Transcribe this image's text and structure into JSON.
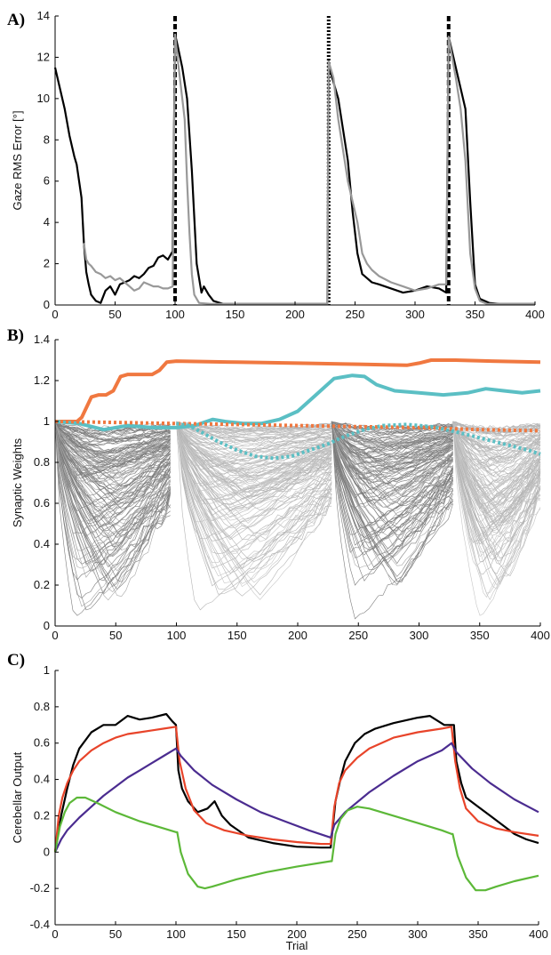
{
  "chart_data": [
    {
      "type": "line",
      "panel_label": "A)",
      "ylabel": "Gaze RMS Error [°]",
      "xlabel": "",
      "xlim": [
        0,
        400
      ],
      "ylim": [
        0,
        14
      ],
      "xticks": [
        0,
        50,
        100,
        150,
        200,
        250,
        300,
        350,
        400
      ],
      "yticks": [
        0,
        2,
        4,
        6,
        8,
        10,
        12,
        14
      ],
      "vlines": [
        {
          "x": 100,
          "style": "dashed"
        },
        {
          "x": 228,
          "style": "dotted"
        },
        {
          "x": 328,
          "style": "dashed"
        }
      ],
      "series": [
        {
          "color": "#000000",
          "x": [
            0,
            4,
            8,
            12,
            16,
            18,
            20,
            22,
            24,
            26,
            28,
            30,
            34,
            38,
            42,
            46,
            50,
            54,
            58,
            62,
            66,
            70,
            74,
            78,
            82,
            86,
            90,
            94,
            98,
            100,
            102,
            106,
            110,
            114,
            118,
            122,
            124,
            128,
            132,
            140,
            160,
            200,
            227,
            228,
            230,
            236,
            240,
            244,
            248,
            252,
            256,
            260,
            264,
            270,
            280,
            290,
            300,
            310,
            320,
            326,
            328,
            330,
            334,
            338,
            342,
            346,
            350,
            354,
            358,
            362,
            370,
            390,
            400
          ],
          "y": [
            11.5,
            10.5,
            9.5,
            8.2,
            7.2,
            6.8,
            6.0,
            5.2,
            3.0,
            1.6,
            1.0,
            0.5,
            0.2,
            0.1,
            0.7,
            0.9,
            0.5,
            1.0,
            1.1,
            1.2,
            1.4,
            1.3,
            1.5,
            1.8,
            1.9,
            2.3,
            2.4,
            2.2,
            2.6,
            13.1,
            12.6,
            11.5,
            10.0,
            6.5,
            2.0,
            0.6,
            0.9,
            0.5,
            0.2,
            0.05,
            0.05,
            0.05,
            0.05,
            11.8,
            11.2,
            10.0,
            8.5,
            7.0,
            4.5,
            2.5,
            1.5,
            1.3,
            1.1,
            1.0,
            0.8,
            0.6,
            0.7,
            0.9,
            0.8,
            0.6,
            13.0,
            12.5,
            11.5,
            10.5,
            9.5,
            5.0,
            1.0,
            0.3,
            0.2,
            0.1,
            0.05,
            0.05,
            0.05
          ]
        },
        {
          "color": "#999999",
          "x": [
            24,
            26,
            28,
            30,
            34,
            38,
            42,
            46,
            50,
            54,
            58,
            62,
            66,
            70,
            74,
            78,
            82,
            86,
            90,
            94,
            98,
            100,
            102,
            104,
            106,
            108,
            110,
            112,
            114,
            116,
            120,
            130,
            227,
            228,
            232,
            236,
            240,
            244,
            248,
            252,
            256,
            260,
            264,
            270,
            280,
            290,
            300,
            310,
            320,
            326,
            328,
            330,
            334,
            338,
            342,
            346,
            350,
            354,
            360,
            380,
            400
          ],
          "y": [
            3.0,
            2.2,
            2.0,
            1.9,
            1.6,
            1.5,
            1.3,
            1.4,
            1.2,
            1.3,
            1.1,
            0.9,
            0.7,
            0.8,
            1.1,
            1.0,
            0.9,
            0.9,
            0.8,
            0.8,
            0.9,
            13.1,
            12.0,
            11.0,
            10.0,
            9.0,
            6.0,
            3.5,
            1.5,
            0.5,
            0.1,
            0.05,
            0.05,
            11.8,
            11.0,
            9.0,
            7.5,
            6.0,
            5.0,
            4.0,
            2.5,
            2.0,
            1.7,
            1.4,
            1.1,
            0.9,
            0.7,
            0.8,
            1.0,
            1.0,
            13.0,
            12.3,
            11.0,
            9.5,
            7.0,
            2.5,
            0.8,
            0.2,
            0.05,
            0.05,
            0.05
          ]
        }
      ]
    },
    {
      "type": "line",
      "panel_label": "B)",
      "ylabel": "Synaptic Weights",
      "xlabel": "",
      "xlim": [
        0,
        400
      ],
      "ylim": [
        0,
        1.4
      ],
      "xticks": [
        0,
        50,
        100,
        150,
        200,
        250,
        300,
        350,
        400
      ],
      "yticks": [
        0,
        0.2,
        0.4,
        0.6,
        0.8,
        1,
        1.2,
        1.4
      ],
      "series": [
        {
          "color": "#f07840",
          "style": "solid",
          "x": [
            0,
            18,
            22,
            30,
            36,
            42,
            48,
            54,
            60,
            70,
            80,
            86,
            92,
            100,
            150,
            200,
            250,
            290,
            300,
            310,
            330,
            360,
            400
          ],
          "y": [
            1.0,
            1.0,
            1.02,
            1.12,
            1.13,
            1.13,
            1.15,
            1.22,
            1.23,
            1.23,
            1.23,
            1.25,
            1.29,
            1.295,
            1.29,
            1.285,
            1.28,
            1.275,
            1.285,
            1.3,
            1.3,
            1.295,
            1.29
          ]
        },
        {
          "color": "#5bbfc4",
          "style": "solid",
          "x": [
            0,
            20,
            40,
            60,
            80,
            100,
            115,
            130,
            140,
            155,
            170,
            185,
            200,
            215,
            230,
            245,
            255,
            265,
            280,
            300,
            320,
            340,
            355,
            370,
            385,
            400
          ],
          "y": [
            1.0,
            0.99,
            0.96,
            0.98,
            0.97,
            0.97,
            0.98,
            1.01,
            1.0,
            0.99,
            0.99,
            1.01,
            1.05,
            1.13,
            1.21,
            1.225,
            1.22,
            1.18,
            1.15,
            1.14,
            1.13,
            1.14,
            1.16,
            1.15,
            1.14,
            1.15
          ]
        },
        {
          "color": "#f07840",
          "style": "dotted",
          "x": [
            0,
            50,
            100,
            150,
            200,
            250,
            300,
            350,
            400
          ],
          "y": [
            1.0,
            0.995,
            0.99,
            0.985,
            0.98,
            0.975,
            0.97,
            0.96,
            0.955
          ]
        },
        {
          "color": "#5bbfc4",
          "style": "dotted",
          "x": [
            100,
            110,
            120,
            135,
            150,
            165,
            180,
            195,
            210,
            225,
            232,
            240,
            255,
            270,
            290,
            310,
            330,
            350,
            370,
            390,
            400
          ],
          "y": [
            0.99,
            0.98,
            0.95,
            0.9,
            0.86,
            0.83,
            0.82,
            0.83,
            0.86,
            0.89,
            0.91,
            0.93,
            0.96,
            0.98,
            0.985,
            0.975,
            0.95,
            0.92,
            0.89,
            0.86,
            0.84
          ]
        }
      ]
    },
    {
      "type": "line",
      "panel_label": "C)",
      "ylabel": "Cerebellar Output",
      "xlabel": "Trial",
      "xlim": [
        0,
        400
      ],
      "ylim": [
        -0.4,
        1
      ],
      "xticks": [
        0,
        50,
        100,
        150,
        200,
        250,
        300,
        350,
        400
      ],
      "yticks": [
        -0.4,
        -0.2,
        0,
        0.2,
        0.4,
        0.6,
        0.8,
        1
      ],
      "series": [
        {
          "color": "#000000",
          "x": [
            0,
            5,
            10,
            15,
            20,
            30,
            40,
            50,
            60,
            70,
            80,
            92,
            97,
            100,
            102,
            105,
            110,
            118,
            126,
            132,
            138,
            145,
            160,
            180,
            200,
            220,
            228,
            232,
            236,
            240,
            248,
            256,
            265,
            280,
            300,
            310,
            322,
            326,
            330,
            332,
            336,
            340,
            350,
            360,
            370,
            380,
            390,
            400
          ],
          "y": [
            0.0,
            0.2,
            0.35,
            0.48,
            0.57,
            0.66,
            0.7,
            0.7,
            0.75,
            0.73,
            0.74,
            0.76,
            0.72,
            0.7,
            0.45,
            0.35,
            0.28,
            0.22,
            0.24,
            0.28,
            0.2,
            0.15,
            0.08,
            0.05,
            0.03,
            0.025,
            0.025,
            0.28,
            0.4,
            0.5,
            0.6,
            0.65,
            0.68,
            0.71,
            0.74,
            0.75,
            0.7,
            0.7,
            0.7,
            0.5,
            0.38,
            0.3,
            0.25,
            0.2,
            0.15,
            0.1,
            0.07,
            0.05
          ]
        },
        {
          "color": "#e8442a",
          "x": [
            0,
            3,
            6,
            10,
            15,
            20,
            30,
            40,
            50,
            60,
            70,
            80,
            90,
            100,
            103,
            108,
            115,
            125,
            140,
            160,
            180,
            200,
            220,
            228,
            231,
            235,
            240,
            250,
            260,
            280,
            300,
            320,
            328,
            331,
            335,
            340,
            350,
            365,
            380,
            400
          ],
          "y": [
            0.0,
            0.2,
            0.3,
            0.38,
            0.45,
            0.5,
            0.56,
            0.6,
            0.63,
            0.65,
            0.66,
            0.67,
            0.68,
            0.69,
            0.5,
            0.35,
            0.23,
            0.16,
            0.12,
            0.09,
            0.07,
            0.055,
            0.045,
            0.045,
            0.25,
            0.38,
            0.45,
            0.52,
            0.57,
            0.63,
            0.66,
            0.68,
            0.69,
            0.5,
            0.35,
            0.24,
            0.17,
            0.13,
            0.11,
            0.09
          ]
        },
        {
          "color": "#4b2c90",
          "x": [
            0,
            5,
            10,
            20,
            30,
            40,
            50,
            60,
            70,
            80,
            90,
            100,
            104,
            115,
            130,
            150,
            170,
            190,
            210,
            228,
            231,
            240,
            260,
            280,
            300,
            320,
            328,
            332,
            345,
            360,
            380,
            400
          ],
          "y": [
            0.0,
            0.07,
            0.12,
            0.19,
            0.25,
            0.31,
            0.36,
            0.41,
            0.45,
            0.49,
            0.53,
            0.57,
            0.53,
            0.45,
            0.37,
            0.29,
            0.22,
            0.17,
            0.12,
            0.08,
            0.15,
            0.22,
            0.33,
            0.42,
            0.5,
            0.56,
            0.6,
            0.55,
            0.46,
            0.38,
            0.29,
            0.22
          ]
        },
        {
          "color": "#5cb838",
          "x": [
            0,
            4,
            8,
            12,
            18,
            25,
            35,
            50,
            70,
            90,
            100,
            101,
            104,
            110,
            118,
            124,
            130,
            150,
            175,
            200,
            228,
            229,
            232,
            236,
            242,
            250,
            260,
            280,
            300,
            320,
            328,
            329,
            333,
            340,
            348,
            356,
            365,
            380,
            400
          ],
          "y": [
            0.0,
            0.14,
            0.22,
            0.27,
            0.3,
            0.3,
            0.27,
            0.22,
            0.17,
            0.13,
            0.11,
            0.11,
            0.0,
            -0.12,
            -0.19,
            -0.2,
            -0.19,
            -0.15,
            -0.11,
            -0.08,
            -0.05,
            -0.05,
            0.1,
            0.18,
            0.23,
            0.25,
            0.24,
            0.2,
            0.16,
            0.12,
            0.1,
            0.1,
            -0.02,
            -0.14,
            -0.21,
            -0.21,
            -0.19,
            -0.16,
            -0.13
          ]
        }
      ]
    }
  ]
}
